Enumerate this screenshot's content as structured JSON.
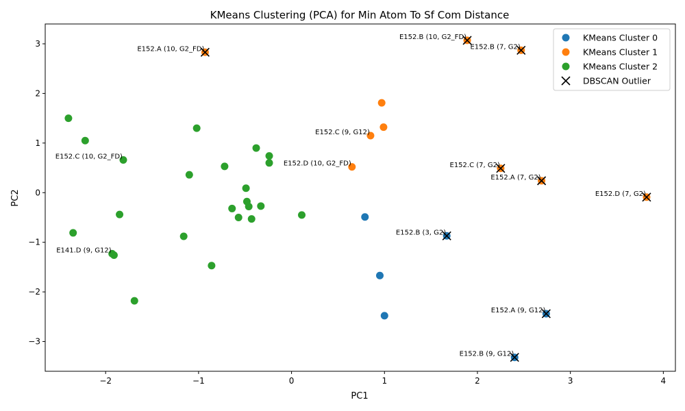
{
  "chart_data": {
    "type": "scatter",
    "title": "KMeans Clustering (PCA) for Min Atom To Sf Com Distance",
    "xlabel": "PC1",
    "ylabel": "PC2",
    "xlim": [
      -2.65,
      4.13
    ],
    "ylim": [
      -3.6,
      3.4
    ],
    "xticks": [
      -2,
      -1,
      0,
      1,
      2,
      3,
      4
    ],
    "yticks": [
      -3,
      -2,
      -1,
      0,
      1,
      2,
      3
    ],
    "grid": false,
    "legend_position": "top-right",
    "colors": {
      "cluster0": "#1f77b4",
      "cluster1": "#ff7f0e",
      "cluster2": "#2ca02c",
      "outlier": "#000000"
    },
    "series": [
      {
        "name": "KMeans Cluster 0",
        "color": "#1f77b4",
        "points": [
          [
            0.79,
            -0.49
          ],
          [
            0.95,
            -1.67
          ],
          [
            1.0,
            -2.48
          ],
          [
            1.67,
            -0.87
          ],
          [
            2.74,
            -2.44
          ],
          [
            2.4,
            -3.32
          ]
        ]
      },
      {
        "name": "KMeans Cluster 1",
        "color": "#ff7f0e",
        "points": [
          [
            0.97,
            1.81
          ],
          [
            0.99,
            1.32
          ],
          [
            0.85,
            1.15
          ],
          [
            0.65,
            0.52
          ],
          [
            -0.93,
            2.83
          ],
          [
            1.89,
            3.07
          ],
          [
            2.47,
            2.87
          ],
          [
            2.25,
            0.49
          ],
          [
            2.69,
            0.24
          ],
          [
            3.82,
            -0.09
          ]
        ]
      },
      {
        "name": "KMeans Cluster 2",
        "color": "#2ca02c",
        "points": [
          [
            -2.4,
            1.5
          ],
          [
            -2.22,
            1.05
          ],
          [
            -1.81,
            0.66
          ],
          [
            -1.02,
            1.3
          ],
          [
            -1.1,
            0.36
          ],
          [
            -0.72,
            0.53
          ],
          [
            -0.38,
            0.9
          ],
          [
            -0.24,
            0.74
          ],
          [
            -0.24,
            0.6
          ],
          [
            -0.49,
            0.09
          ],
          [
            -0.48,
            -0.18
          ],
          [
            -0.46,
            -0.28
          ],
          [
            -0.64,
            -0.32
          ],
          [
            -0.57,
            -0.5
          ],
          [
            -0.43,
            -0.53
          ],
          [
            -0.33,
            -0.27
          ],
          [
            0.11,
            -0.45
          ],
          [
            -1.85,
            -0.44
          ],
          [
            -2.35,
            -0.81
          ],
          [
            -1.16,
            -0.88
          ],
          [
            -1.93,
            -1.23
          ],
          [
            -1.91,
            -1.26
          ],
          [
            -0.86,
            -1.47
          ],
          [
            -1.69,
            -2.18
          ]
        ]
      }
    ],
    "outliers": {
      "name": "DBSCAN Outlier",
      "points": [
        [
          -0.93,
          2.83
        ],
        [
          1.89,
          3.07
        ],
        [
          2.47,
          2.87
        ],
        [
          2.25,
          0.49
        ],
        [
          2.69,
          0.24
        ],
        [
          3.82,
          -0.09
        ],
        [
          1.67,
          -0.87
        ],
        [
          2.74,
          -2.44
        ],
        [
          2.4,
          -3.32
        ]
      ]
    },
    "annotations": [
      {
        "text": "E152.A (10, G2_FD)",
        "x": -0.93,
        "y": 2.83
      },
      {
        "text": "E152.B (10, G2_FD)",
        "x": 1.89,
        "y": 3.07
      },
      {
        "text": "E152.B (7, G2)",
        "x": 2.47,
        "y": 2.87
      },
      {
        "text": "E152.C (9, G12)",
        "x": 0.85,
        "y": 1.15
      },
      {
        "text": "E152.C (10, G2_FD)",
        "x": -1.81,
        "y": 0.66
      },
      {
        "text": "E152.D (10, G2_FD)",
        "x": 0.65,
        "y": 0.52
      },
      {
        "text": "E152.C (7, G2)",
        "x": 2.25,
        "y": 0.49
      },
      {
        "text": "E152.A (7, G2)",
        "x": 2.69,
        "y": 0.24
      },
      {
        "text": "E152.D (7, G2)",
        "x": 3.82,
        "y": -0.09
      },
      {
        "text": "E152.B (3, G2)",
        "x": 1.67,
        "y": -0.87
      },
      {
        "text": "E141.D (9, G12)",
        "x": -1.93,
        "y": -1.23
      },
      {
        "text": "E152.A (9, G12)",
        "x": 2.74,
        "y": -2.44
      },
      {
        "text": "E152.B (9, G12)",
        "x": 2.4,
        "y": -3.32
      }
    ]
  }
}
